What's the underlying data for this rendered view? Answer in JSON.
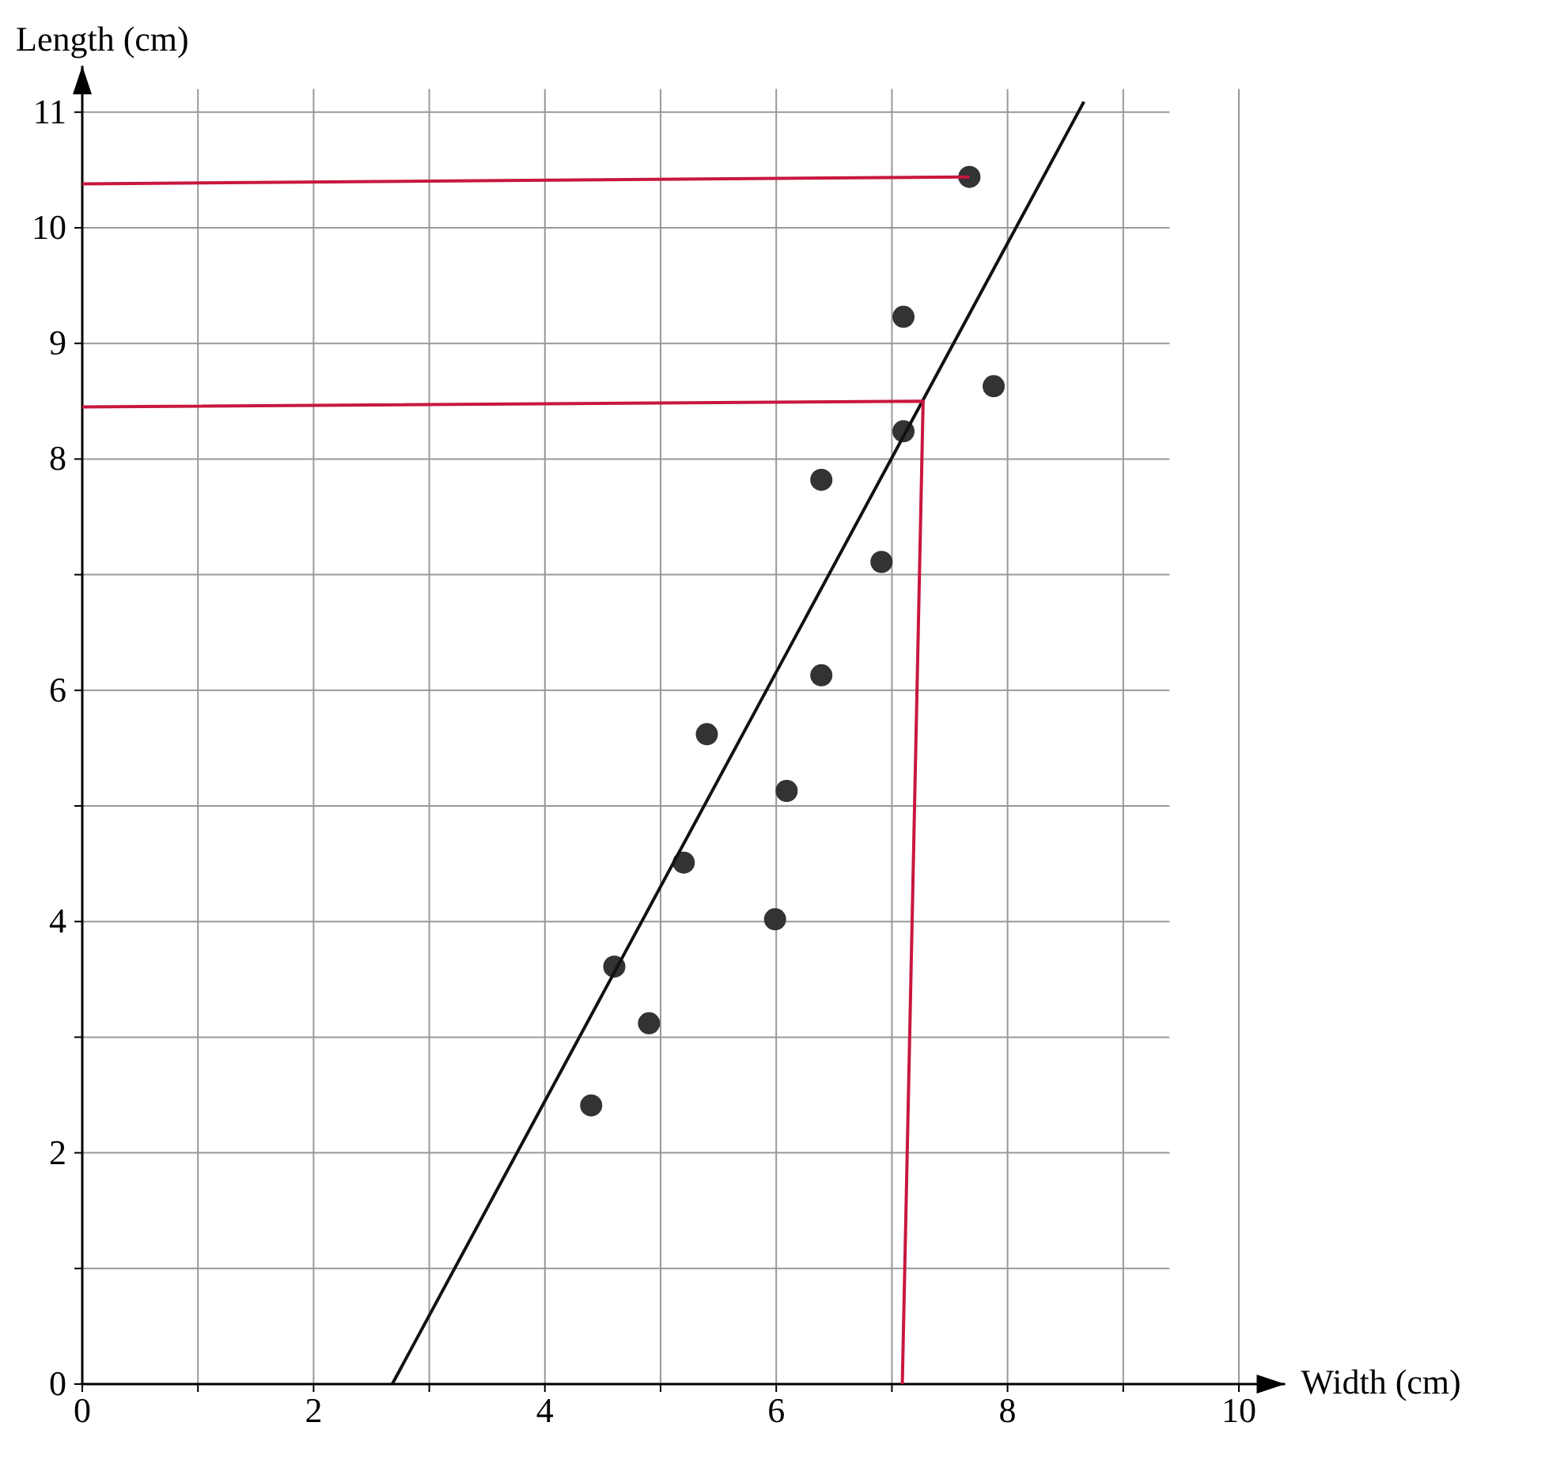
{
  "chart_data": {
    "type": "scatter",
    "xlabel": "Width (cm)",
    "ylabel": "Length (cm)",
    "xlim": [
      0,
      10.4
    ],
    "ylim": [
      0,
      11.4
    ],
    "xticks": [
      0,
      {
        "value": 1,
        "label": null
      },
      2,
      {
        "value": 3,
        "label": null
      },
      4,
      {
        "value": 5,
        "label": null
      },
      6,
      {
        "value": 7,
        "label": null
      },
      8,
      {
        "value": 9,
        "label": null
      },
      10
    ],
    "yticks": [
      0,
      {
        "value": 1,
        "label": null
      },
      2,
      {
        "value": 3,
        "label": null
      },
      4,
      {
        "value": 5,
        "label": null
      },
      6,
      {
        "value": 7,
        "label": null
      },
      8,
      {
        "value": 9,
        "label": "9"
      },
      10,
      {
        "value": 11,
        "label": "11"
      }
    ],
    "grid": true,
    "marker": "circle",
    "series": [
      {
        "color": "#333333",
        "x": [
          7.67,
          7.1,
          7.88,
          7.1,
          6.39,
          6.91,
          6.39,
          5.4,
          6.09,
          5.2,
          5.99,
          4.6,
          4.9,
          4.4
        ],
        "values": [
          10.44,
          9.23,
          8.63,
          8.24,
          7.82,
          7.11,
          6.13,
          5.62,
          5.13,
          4.51,
          4.02,
          3.61,
          3.12,
          2.41
        ]
      },
      {
        "type": "line",
        "color": "#111111",
        "marker": "none",
        "x": [
          2.68,
          8.66
        ],
        "values": [
          0,
          11.09
        ]
      },
      {
        "type": "line",
        "color": "#c8173f",
        "marker": "none",
        "x": [
          0,
          7.67
        ],
        "values": [
          10.38,
          10.44
        ]
      },
      {
        "type": "line",
        "color": "#c8173f",
        "marker": "none",
        "x": [
          0,
          7.27,
          7.09
        ],
        "values": [
          8.45,
          8.5,
          0
        ]
      }
    ]
  }
}
